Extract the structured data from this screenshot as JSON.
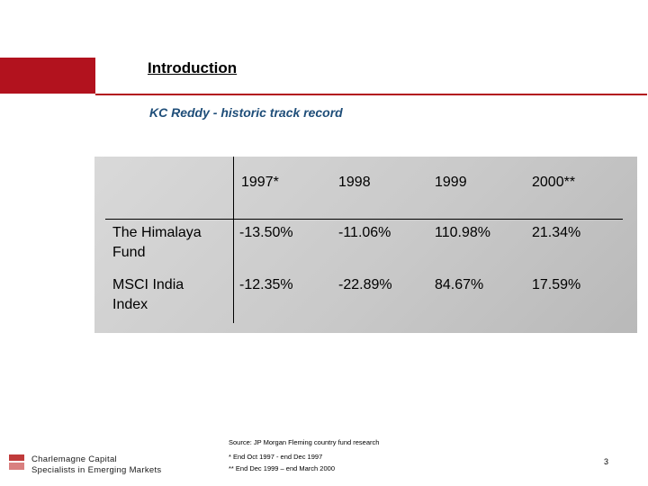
{
  "header": {
    "title": "Introduction",
    "subtitle": "KC Reddy - historic track record"
  },
  "table": {
    "columns": [
      "1997*",
      "1998",
      "1999",
      "2000**"
    ],
    "rows": [
      {
        "label_line1": "The Himalaya",
        "label_line2": "Fund",
        "values": [
          "-13.50%",
          "-11.06%",
          "110.98%",
          "21.34%"
        ]
      },
      {
        "label_line1": "MSCI India",
        "label_line2": "Index",
        "values": [
          "-12.35%",
          "-22.89%",
          "84.67%",
          "17.59%"
        ]
      }
    ]
  },
  "footer": {
    "source": "Source: JP Morgan Fleming country fund research",
    "note1": "* End Oct 1997 - end Dec 1997",
    "note2": "** End Dec 1999 – end March 2000",
    "company_line1": "Charlemagne Capital",
    "company_line2": "Specialists in Emerging Markets",
    "page_number": "3"
  },
  "colors": {
    "accent_red": "#b2121e",
    "subtitle_blue": "#1f4e79"
  }
}
